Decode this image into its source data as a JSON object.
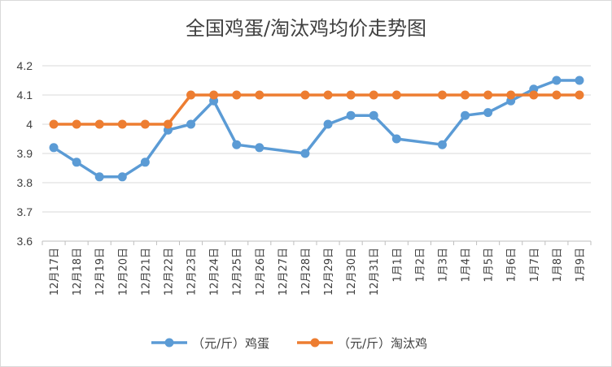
{
  "chart_data": {
    "type": "line",
    "title": "全国鸡蛋/淘汰鸡均价走势图",
    "xlabel": "",
    "ylabel": "",
    "ylim": [
      3.6,
      4.2
    ],
    "yticks": [
      "3.6",
      "3.7",
      "3.8",
      "3.9",
      "4",
      "4.1",
      "4.2"
    ],
    "grid": true,
    "legend_position": "bottom",
    "categories": [
      "12月17日",
      "12月18日",
      "12月19日",
      "12月20日",
      "12月21日",
      "12月22日",
      "12月23日",
      "12月24日",
      "12月25日",
      "12月26日",
      "12月27日",
      "12月28日",
      "12月29日",
      "12月30日",
      "12月31日",
      "1月1日",
      "1月2日",
      "1月3日",
      "1月4日",
      "1月5日",
      "1月6日",
      "1月7日",
      "1月8日",
      "1月9日"
    ],
    "series": [
      {
        "name": "（元/斤）鸡蛋",
        "color": "#5b9bd5",
        "values": [
          3.92,
          3.87,
          3.82,
          3.82,
          3.87,
          3.98,
          4.0,
          4.08,
          3.93,
          3.92,
          null,
          3.9,
          4.0,
          4.03,
          4.03,
          3.95,
          null,
          3.93,
          4.03,
          4.04,
          4.08,
          4.12,
          4.15,
          4.15
        ]
      },
      {
        "name": "（元/斤）淘汰鸡",
        "color": "#ed7d31",
        "values": [
          4.0,
          4.0,
          4.0,
          4.0,
          4.0,
          4.0,
          4.1,
          4.1,
          4.1,
          4.1,
          null,
          4.1,
          4.1,
          4.1,
          4.1,
          4.1,
          null,
          4.1,
          4.1,
          4.1,
          4.1,
          4.1,
          4.1,
          4.1
        ]
      }
    ]
  }
}
